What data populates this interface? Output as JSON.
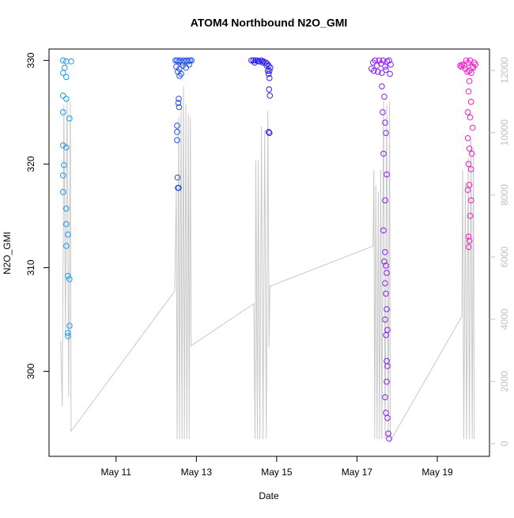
{
  "chart_data": {
    "type": "scatter",
    "title": "ATOM4 Northbound N2O_GMI",
    "xlabel": "Date",
    "ylabel": "N2O_GMI",
    "xlim": [
      9.33,
      20.3
    ],
    "xticks": [
      {
        "value": 11,
        "label": "May 11"
      },
      {
        "value": 13,
        "label": "May 13"
      },
      {
        "value": 15,
        "label": "May 15"
      },
      {
        "value": 17,
        "label": "May 17"
      },
      {
        "value": 19,
        "label": "May 19"
      }
    ],
    "ylim": [
      291.8,
      331.1
    ],
    "yticks": [
      300,
      310,
      320,
      330
    ],
    "y2lim": [
      -407,
      12686
    ],
    "y2ticks": [
      0,
      2000,
      4000,
      6000,
      8000,
      10000,
      12000
    ],
    "y2color": "#c0c0c0",
    "series": [
      {
        "type": "line",
        "axis": "y2",
        "color": "#c8c8c8",
        "x": [
          9.62,
          9.66,
          9.7,
          9.74,
          9.78,
          9.82,
          9.86,
          9.88,
          12.46,
          12.5,
          12.52,
          12.56,
          12.58,
          12.62,
          12.64,
          12.68,
          12.7,
          12.74,
          12.76,
          12.8,
          12.82,
          12.85,
          12.87,
          14.43,
          14.46,
          14.48,
          14.52,
          14.54,
          14.58,
          14.62,
          14.66,
          14.7,
          14.74,
          14.78,
          14.81,
          14.83,
          17.4,
          17.42,
          17.44,
          17.47,
          17.5,
          17.53,
          17.56,
          17.59,
          17.62,
          17.66,
          17.7,
          17.74,
          17.78,
          17.81,
          17.83,
          19.61,
          19.63,
          19.66,
          19.7,
          19.73,
          19.77,
          19.8,
          19.84,
          19.87,
          19.9,
          19.92
        ],
        "values": [
          3300,
          1200,
          10900,
          3500,
          11100,
          1500,
          11000,
          400,
          4900,
          8200,
          150,
          10500,
          150,
          10800,
          150,
          11500,
          150,
          10900,
          150,
          10600,
          150,
          10500,
          3150,
          4500,
          150,
          9100,
          150,
          9100,
          150,
          10200,
          150,
          10100,
          150,
          10700,
          3100,
          5060,
          6350,
          8800,
          150,
          8300,
          150,
          8100,
          150,
          8800,
          150,
          11000,
          150,
          10900,
          150,
          11000,
          80,
          4090,
          8800,
          150,
          8400,
          150,
          9200,
          150,
          9800,
          150,
          9500,
          150
        ]
      },
      {
        "color": "#1a9be6",
        "x": [
          9.68,
          9.76,
          9.88,
          9.72,
          9.68,
          9.76,
          9.68,
          9.76,
          9.68,
          9.84,
          9.68,
          9.76,
          9.7,
          9.68,
          9.68,
          9.76,
          9.76,
          9.8,
          9.76,
          9.8,
          9.84,
          9.84,
          9.8,
          9.8
        ],
        "values": [
          330.0,
          329.9,
          329.9,
          329.3,
          328.8,
          328.4,
          326.6,
          326.3,
          325.0,
          324.4,
          321.8,
          321.6,
          319.9,
          318.9,
          317.3,
          315.7,
          314.2,
          313.2,
          312.1,
          309.2,
          308.9,
          304.4,
          303.7,
          303.4
        ]
      },
      {
        "color": "#1e50e6",
        "x": [
          12.48,
          12.52,
          12.56,
          12.6,
          12.64,
          12.68,
          12.72,
          12.76,
          12.8,
          12.84,
          12.88,
          12.5,
          12.58,
          12.66,
          12.74,
          12.82,
          12.54,
          12.62,
          12.55,
          12.56,
          12.57,
          12.52,
          12.52,
          12.52,
          12.53,
          12.54,
          12.56,
          12.58
        ],
        "values": [
          330.0,
          330.0,
          329.9,
          330.0,
          329.8,
          330.0,
          329.9,
          330.0,
          329.9,
          330.0,
          330.0,
          329.4,
          329.2,
          329.5,
          329.3,
          329.6,
          328.9,
          328.7,
          325.9,
          326.3,
          325.5,
          323.7,
          323.1,
          322.3,
          318.7,
          317.7,
          317.7,
          328.5
        ]
      },
      {
        "color": "#2a1ef0",
        "x": [
          14.37,
          14.42,
          14.47,
          14.52,
          14.57,
          14.62,
          14.67,
          14.72,
          14.76,
          14.8,
          14.84,
          14.45,
          14.55,
          14.65,
          14.75,
          14.82,
          14.78,
          14.8,
          14.82,
          14.81,
          14.83,
          14.8,
          14.82
        ],
        "values": [
          330.0,
          330.0,
          330.0,
          330.0,
          329.9,
          330.0,
          329.9,
          329.8,
          329.7,
          329.5,
          329.3,
          329.8,
          329.9,
          329.8,
          329.5,
          329.0,
          329.0,
          328.7,
          328.3,
          327.2,
          326.6,
          323.1,
          323.0
        ]
      },
      {
        "color": "#8a1ef0",
        "x": [
          17.36,
          17.4,
          17.45,
          17.5,
          17.55,
          17.6,
          17.65,
          17.7,
          17.75,
          17.8,
          17.84,
          17.42,
          17.52,
          17.62,
          17.72,
          17.82,
          17.62,
          17.68,
          17.64,
          17.7,
          17.72,
          17.66,
          17.74,
          17.7,
          17.66,
          17.7,
          17.68,
          17.72,
          17.74,
          17.7,
          17.72,
          17.74,
          17.7,
          17.76,
          17.72,
          17.74,
          17.76,
          17.74,
          17.7,
          17.72,
          17.76,
          17.78,
          17.8
        ],
        "values": [
          329.2,
          329.8,
          330.0,
          329.5,
          330.0,
          329.7,
          330.0,
          329.4,
          329.9,
          330.0,
          329.6,
          329.0,
          328.9,
          328.8,
          329.1,
          328.7,
          327.5,
          326.5,
          325.0,
          324.0,
          323.0,
          321.0,
          319.0,
          316.5,
          313.6,
          311.5,
          310.6,
          310.2,
          309.5,
          308.5,
          307.5,
          306.0,
          305.0,
          304.0,
          303.5,
          301.0,
          300.5,
          299.0,
          297.5,
          296.0,
          295.5,
          294.0,
          293.5
        ]
      },
      {
        "color": "#f01ec8",
        "x": [
          19.57,
          19.62,
          19.67,
          19.72,
          19.77,
          19.82,
          19.87,
          19.92,
          19.95,
          19.6,
          19.7,
          19.8,
          19.9,
          19.75,
          19.85,
          19.8,
          19.78,
          19.84,
          19.76,
          19.82,
          19.88,
          19.76,
          19.8,
          19.86,
          19.78,
          19.84,
          19.8,
          19.76,
          19.84,
          19.82,
          19.78,
          19.8,
          19.78
        ],
        "values": [
          329.5,
          329.6,
          329.5,
          330.0,
          329.8,
          330.0,
          329.4,
          329.8,
          329.6,
          329.4,
          329.2,
          329.0,
          329.3,
          328.9,
          328.8,
          328.0,
          327.0,
          326.0,
          325.0,
          324.5,
          323.5,
          322.5,
          321.5,
          321.0,
          320.0,
          319.5,
          318.0,
          317.5,
          316.5,
          315.0,
          313.0,
          312.6,
          312.0
        ]
      }
    ]
  }
}
